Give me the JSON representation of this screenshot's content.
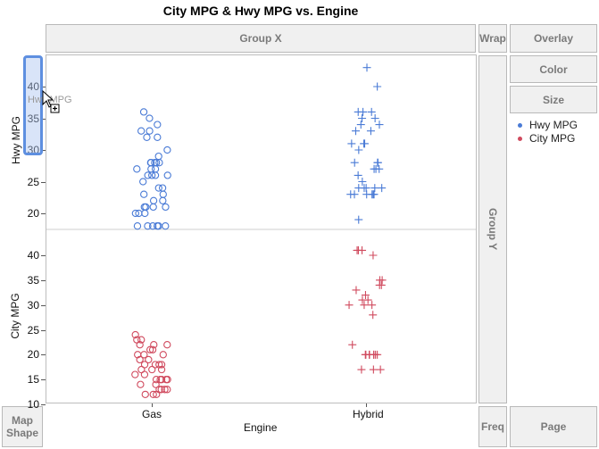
{
  "title": "City MPG & Hwy MPG vs. Engine",
  "zones": {
    "group_x": "Group X",
    "wrap": "Wrap",
    "overlay": "Overlay",
    "color": "Color",
    "size": "Size",
    "group_y": "Group Y",
    "map_shape": "Map Shape",
    "freq": "Freq",
    "page": "Page"
  },
  "legend": [
    {
      "label": "Hwy MPG",
      "color": "#4a7bd6"
    },
    {
      "label": "City MPG",
      "color": "#d04a5e"
    }
  ],
  "drag_ghost_label": "Hwy MPG",
  "x_axis": {
    "label": "Engine",
    "categories": [
      "Gas",
      "Hybrid"
    ]
  },
  "y_axes": [
    {
      "label": "Hwy MPG",
      "ticks": [
        "40",
        "35",
        "30",
        "25",
        "20"
      ]
    },
    {
      "label": "City MPG",
      "ticks": [
        "40",
        "35",
        "30",
        "25",
        "20",
        "15",
        "10"
      ]
    }
  ],
  "chart_data": [
    {
      "type": "scatter",
      "xlabel": "Engine",
      "ylabel": "Hwy MPG",
      "ylim": [
        17,
        44
      ],
      "categories": [
        "Gas",
        "Hybrid"
      ],
      "series": [
        {
          "name": "Hwy MPG",
          "points": {
            "Gas": [
              36,
              35,
              34,
              33,
              33,
              32,
              32,
              30,
              29,
              28,
              28,
              28,
              28,
              28,
              27,
              27,
              27,
              26,
              26,
              26,
              26,
              25,
              24,
              24,
              23,
              23,
              22,
              22,
              21,
              21,
              21,
              21,
              20,
              20,
              20,
              18,
              18,
              18,
              18,
              18,
              18
            ],
            "Hybrid": [
              43,
              40,
              36,
              36,
              36,
              35,
              35,
              34,
              34,
              33,
              33,
              31,
              31,
              31,
              30,
              28,
              28,
              28,
              27,
              27,
              27,
              26,
              25,
              24,
              24,
              24,
              24,
              24,
              23,
              23,
              23,
              23,
              23,
              23,
              19
            ]
          }
        }
      ]
    },
    {
      "type": "scatter",
      "xlabel": "Engine",
      "ylabel": "City MPG",
      "ylim": [
        10,
        44
      ],
      "categories": [
        "Gas",
        "Hybrid"
      ],
      "series": [
        {
          "name": "City MPG",
          "points": {
            "Gas": [
              24,
              23,
              23,
              22,
              22,
              22,
              21,
              21,
              20,
              20,
              20,
              19,
              19,
              18,
              18,
              18,
              18,
              17,
              17,
              17,
              16,
              16,
              15,
              15,
              15,
              15,
              15,
              14,
              14,
              13,
              13,
              13,
              13,
              12,
              12,
              12
            ],
            "Hybrid": [
              41,
              41,
              41,
              40,
              35,
              35,
              34,
              34,
              33,
              32,
              31,
              31,
              30,
              30,
              30,
              28,
              22,
              20,
              20,
              20,
              20,
              20,
              20,
              20,
              20,
              17,
              17,
              17
            ]
          }
        }
      ]
    }
  ]
}
